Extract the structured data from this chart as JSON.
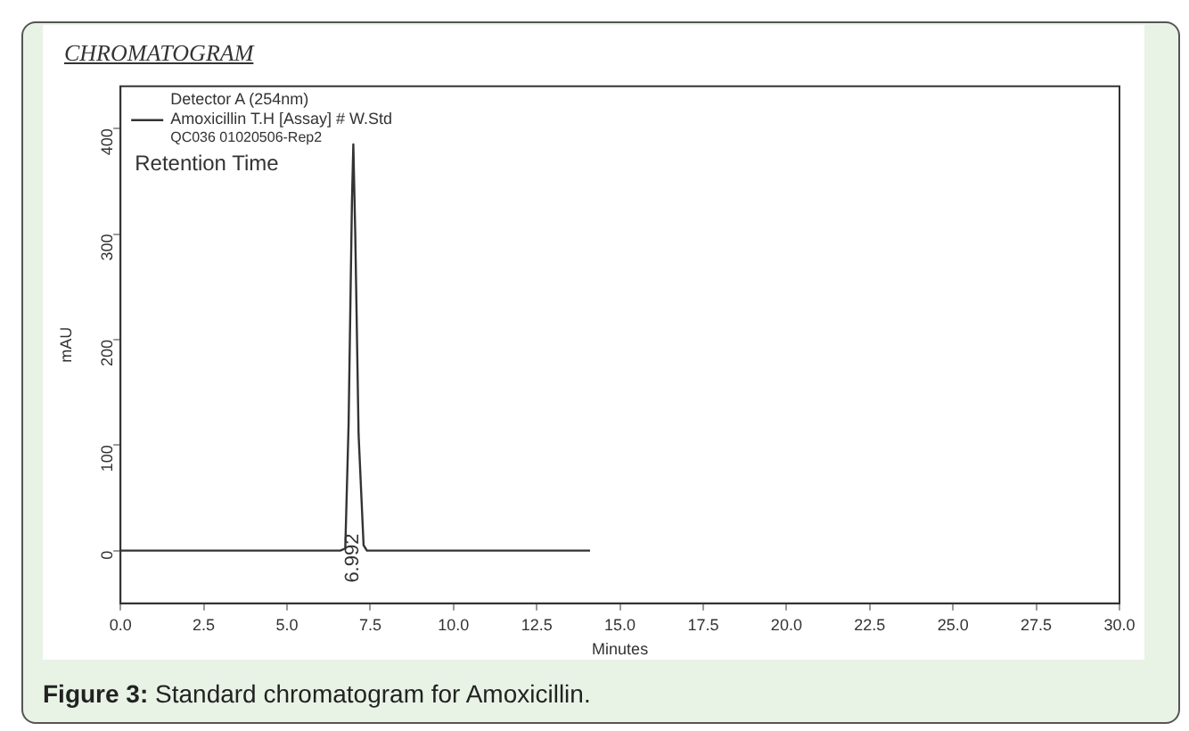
{
  "chart_data": {
    "type": "line",
    "title": "CHROMATOGRAM",
    "xlabel": "Minutes",
    "ylabel": "mAU",
    "legend_title": "Detector A (254nm)",
    "legend": "top left",
    "marker": "none",
    "line_style": "solid",
    "grid": false,
    "x": [
      0,
      3,
      6.6,
      6.75,
      6.85,
      6.95,
      6.992,
      7.05,
      7.15,
      7.3,
      7.4,
      10,
      14.1
    ],
    "series": [
      {
        "name": "Amoxicillin T.H [Assay] # W.Std",
        "color": "#333333",
        "values": [
          0,
          0,
          0,
          2,
          120,
          330,
          385,
          300,
          110,
          5,
          0,
          0,
          0
        ]
      }
    ],
    "xlim": [
      0,
      30
    ],
    "xticks": [
      {
        "value": 0,
        "label": "0.0"
      },
      {
        "value": 2.5,
        "label": "2.5"
      },
      {
        "value": 5,
        "label": "5.0"
      },
      {
        "value": 7.5,
        "label": "7.5"
      },
      {
        "value": 10,
        "label": "10.0"
      },
      {
        "value": 12.5,
        "label": "12.5"
      },
      {
        "value": 15,
        "label": "15.0"
      },
      {
        "value": 17.5,
        "label": "17.5"
      },
      {
        "value": 20,
        "label": "20.0"
      },
      {
        "value": 22.5,
        "label": "22.5"
      },
      {
        "value": 25,
        "label": "25.0"
      },
      {
        "value": 27.5,
        "label": "27.5"
      },
      {
        "value": 30,
        "label": "30.0"
      }
    ],
    "ylim": [
      -50,
      440
    ],
    "yticks": [
      0,
      100,
      200,
      300,
      400
    ],
    "annotations": [
      "QC036 01020506-Rep2",
      "Retention Time",
      {
        "text": "6.992",
        "x": 6.992,
        "y": 0
      },
      "Figure 3: Standard chromatogram for Amoxicillin."
    ]
  }
}
